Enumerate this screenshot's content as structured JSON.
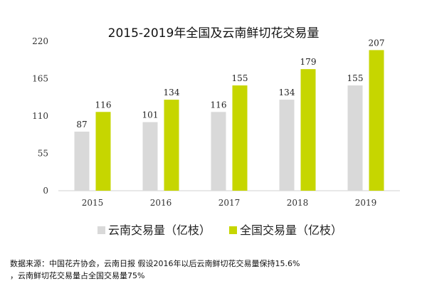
{
  "chart_data": {
    "type": "bar",
    "title": "2015-2019年全国及云南鲜切花交易量",
    "categories": [
      "2015",
      "2016",
      "2017",
      "2018",
      "2019"
    ],
    "series": [
      {
        "name": "云南交易量（亿枝）",
        "values": [
          87,
          101,
          116,
          134,
          155
        ],
        "color": "#d9d9d9"
      },
      {
        "name": "全国交易量（亿枝）",
        "values": [
          116,
          134,
          155,
          179,
          207
        ],
        "color": "#c6d600"
      }
    ],
    "yticks": [
      0,
      55,
      110,
      165,
      220
    ],
    "ylim": [
      0,
      220
    ],
    "grid": false,
    "legend_position": "bottom",
    "data_labels": true
  },
  "notes": {
    "line1": "数据来源：中国花卉协会，云南日报 假设2016年以后云南鲜切花交易量保持15.6%",
    "line2": "，云南鲜切花交易量占全国交易量75%"
  }
}
